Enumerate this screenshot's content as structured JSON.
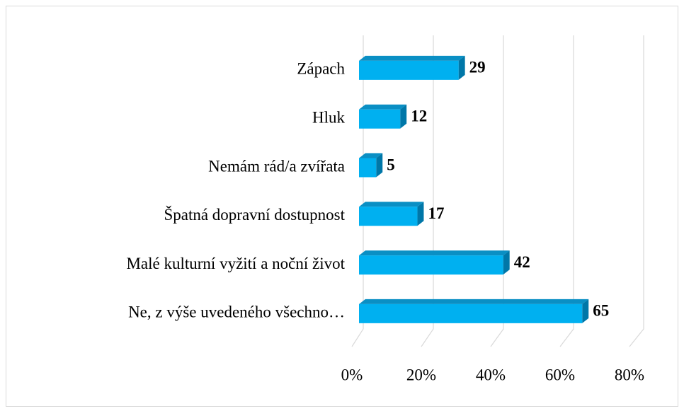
{
  "chart_data": {
    "type": "bar3d_horizontal",
    "categories": [
      "Zápach",
      "Hluk",
      "Nemám rád/a zvířata",
      "Špatná dopravní dostupnost",
      "Malé kulturní vyžití a noční život",
      "Ne, z výše uvedeného všechno…"
    ],
    "values": [
      29,
      12,
      5,
      17,
      42,
      65
    ],
    "color": "#00b0f0",
    "xlim": [
      0,
      80
    ],
    "xticks": [
      {
        "value": 0,
        "label": "0%"
      },
      {
        "value": 20,
        "label": "20%"
      },
      {
        "value": 40,
        "label": "40%"
      },
      {
        "value": 60,
        "label": "60%"
      },
      {
        "value": 80,
        "label": "80%"
      }
    ],
    "grid": true
  }
}
